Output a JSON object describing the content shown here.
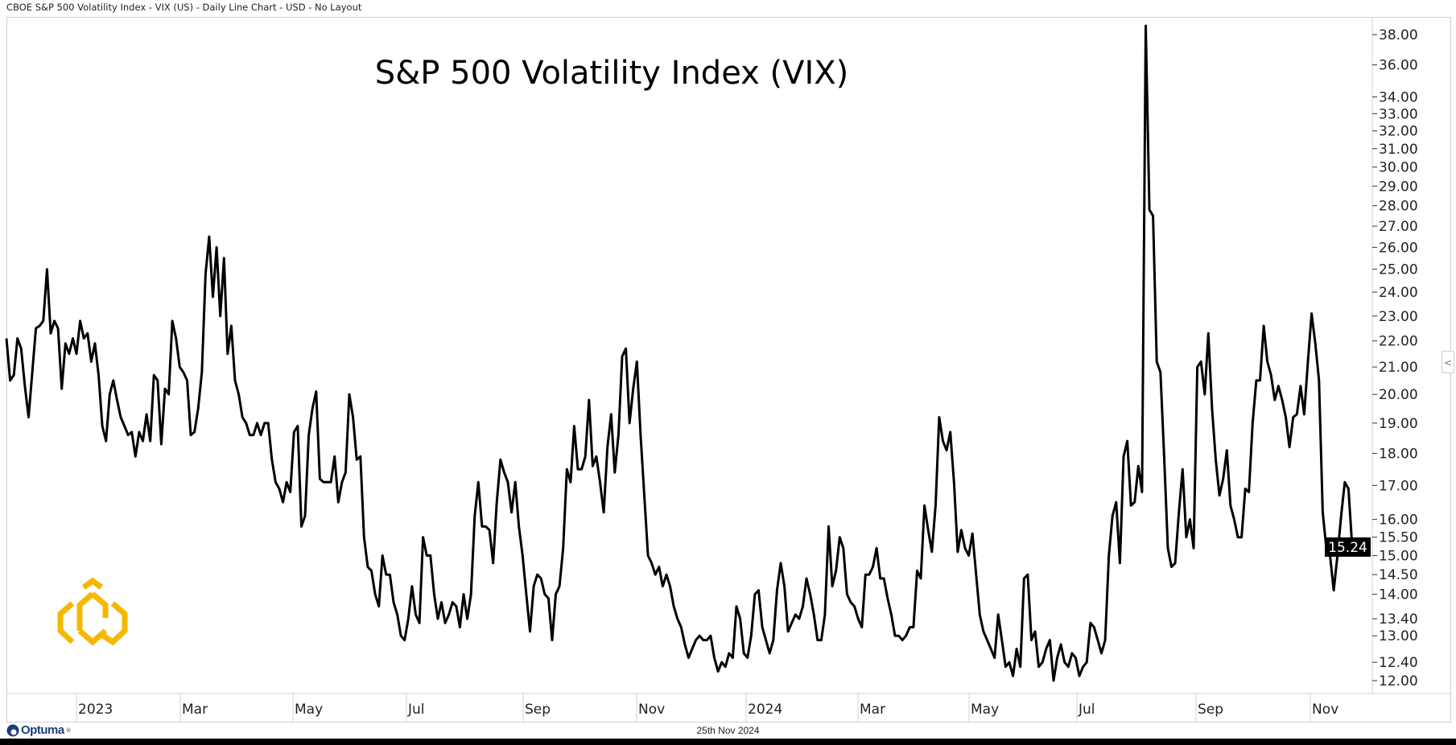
{
  "header": {
    "text": "CBOE S&P 500 Volatility Index - VIX (US) - Daily Line Chart - USD - No Layout"
  },
  "footer": {
    "date": "25th Nov 2024",
    "brand": "Optuma",
    "brand_mark": "®"
  },
  "colors": {
    "line": "#000000",
    "logo": "#f5b800",
    "brand": "#1d3e7a",
    "grid": "#d0d0d0"
  },
  "collapse_icon": "<",
  "chart_data": {
    "type": "line",
    "title": "S&P 500 Volatility Index (VIX)",
    "xlabel": "",
    "ylabel": "",
    "y_scale": "log",
    "ylim": [
      12.0,
      38.0
    ],
    "x_range": [
      "2022-11-21",
      "2024-11-25"
    ],
    "grid": false,
    "last_value_label": "15.24",
    "x_tick_labels": [
      "2023",
      "Mar",
      "May",
      "Jul",
      "Sep",
      "Nov",
      "2024",
      "Mar",
      "May",
      "Jul",
      "Sep",
      "Nov"
    ],
    "y_ticks": [
      38,
      36,
      34,
      33,
      32,
      31,
      30,
      29,
      28,
      27,
      26,
      25,
      24,
      23,
      22,
      21,
      20,
      19,
      18,
      17,
      16,
      15.5,
      15,
      14.5,
      14,
      13.4,
      13,
      12.4,
      12
    ],
    "y_tick_labels": [
      "38.00",
      "36.00",
      "34.00",
      "33.00",
      "32.00",
      "31.00",
      "30.00",
      "29.00",
      "28.00",
      "27.00",
      "26.00",
      "25.00",
      "24.00",
      "23.00",
      "22.00",
      "21.00",
      "20.00",
      "19.00",
      "18.00",
      "17.00",
      "16.00",
      "15.50",
      "15.00",
      "14.50",
      "14.00",
      "13.40",
      "13.00",
      "12.40",
      "12.00"
    ],
    "series": [
      {
        "name": "VIX",
        "values": [
          22.1,
          20.5,
          20.7,
          22.1,
          21.7,
          20.3,
          19.2,
          20.8,
          22.5,
          22.6,
          22.8,
          25.0,
          22.3,
          22.8,
          22.5,
          20.2,
          21.9,
          21.5,
          22.1,
          21.5,
          22.8,
          22.1,
          22.3,
          21.2,
          21.9,
          20.7,
          18.9,
          18.4,
          20.0,
          20.5,
          19.8,
          19.2,
          18.9,
          18.6,
          18.7,
          17.9,
          18.7,
          18.4,
          19.3,
          18.4,
          20.7,
          20.5,
          18.3,
          20.2,
          20.0,
          22.8,
          22.1,
          21.0,
          20.8,
          20.5,
          18.6,
          18.7,
          19.5,
          20.8,
          24.8,
          26.5,
          23.8,
          26.0,
          23.0,
          25.5,
          21.5,
          22.6,
          20.5,
          20.0,
          19.2,
          19.0,
          18.6,
          18.6,
          19.0,
          18.6,
          19.0,
          19.0,
          17.8,
          17.1,
          16.9,
          16.5,
          17.1,
          16.8,
          18.7,
          18.9,
          15.8,
          16.1,
          18.6,
          19.5,
          20.1,
          17.2,
          17.1,
          17.1,
          17.1,
          17.9,
          16.5,
          17.1,
          17.4,
          20.0,
          19.2,
          17.8,
          17.9,
          15.5,
          14.7,
          14.6,
          14.0,
          13.7,
          15.0,
          14.5,
          14.5,
          13.8,
          13.5,
          13.0,
          12.9,
          13.4,
          14.2,
          13.5,
          13.3,
          15.5,
          15.0,
          15.0,
          14.0,
          13.4,
          13.8,
          13.3,
          13.5,
          13.8,
          13.7,
          13.2,
          14.0,
          13.4,
          14.0,
          16.1,
          17.1,
          15.8,
          15.8,
          15.7,
          14.8,
          16.5,
          17.8,
          17.4,
          17.1,
          16.2,
          17.1,
          15.8,
          15.0,
          14.0,
          13.1,
          14.2,
          14.5,
          14.4,
          14.0,
          13.9,
          12.9,
          14.0,
          14.2,
          15.2,
          17.5,
          17.1,
          18.9,
          17.5,
          17.5,
          17.9,
          19.8,
          17.6,
          17.9,
          17.1,
          16.2,
          18.2,
          19.3,
          17.4,
          18.6,
          21.4,
          21.7,
          19.0,
          20.2,
          21.2,
          18.6,
          16.7,
          15.0,
          14.8,
          14.5,
          14.7,
          14.2,
          14.5,
          14.2,
          13.7,
          13.4,
          13.2,
          12.8,
          12.5,
          12.7,
          12.9,
          13.0,
          12.9,
          12.9,
          13.0,
          12.5,
          12.2,
          12.4,
          12.3,
          12.6,
          12.5,
          13.7,
          13.4,
          12.6,
          12.5,
          13.0,
          14.0,
          14.1,
          13.2,
          12.9,
          12.6,
          12.9,
          14.1,
          14.8,
          14.2,
          13.1,
          13.3,
          13.5,
          13.4,
          13.7,
          14.4,
          14.0,
          13.5,
          12.9,
          12.9,
          13.5,
          15.8,
          14.2,
          14.6,
          15.5,
          15.2,
          14.0,
          13.8,
          13.7,
          13.4,
          13.2,
          14.5,
          14.5,
          14.7,
          15.2,
          14.4,
          14.4,
          13.9,
          13.5,
          13.0,
          13.0,
          12.9,
          13.0,
          13.2,
          13.2,
          14.6,
          14.4,
          16.4,
          15.7,
          15.1,
          16.4,
          19.2,
          18.4,
          18.1,
          18.7,
          17.1,
          15.1,
          15.7,
          15.2,
          15.0,
          15.6,
          14.5,
          13.5,
          13.1,
          12.9,
          12.7,
          12.5,
          13.5,
          12.9,
          12.3,
          12.4,
          12.1,
          12.7,
          12.3,
          14.4,
          14.5,
          12.9,
          13.1,
          12.3,
          12.4,
          12.7,
          12.9,
          12.0,
          12.5,
          12.8,
          12.4,
          12.3,
          12.6,
          12.5,
          12.1,
          12.3,
          12.4,
          13.3,
          13.2,
          12.9,
          12.6,
          12.9,
          15.0,
          16.1,
          16.5,
          14.8,
          17.9,
          18.4,
          16.4,
          16.5,
          17.6,
          16.8,
          38.6,
          27.8,
          27.5,
          21.2,
          20.8,
          17.9,
          15.2,
          14.7,
          14.8,
          16.2,
          17.5,
          15.5,
          16.0,
          15.2,
          21.0,
          21.2,
          20.0,
          22.3,
          19.5,
          17.8,
          16.7,
          17.2,
          18.1,
          16.4,
          16.0,
          15.5,
          15.5,
          16.9,
          16.8,
          19.0,
          20.5,
          20.5,
          22.6,
          21.2,
          20.7,
          19.8,
          20.3,
          19.8,
          19.2,
          18.2,
          19.2,
          19.3,
          20.3,
          19.3,
          21.2,
          23.1,
          21.9,
          20.5,
          16.2,
          15.2,
          15.0,
          14.1,
          15.0,
          16.1,
          17.1,
          16.9,
          15.24
        ]
      }
    ]
  }
}
